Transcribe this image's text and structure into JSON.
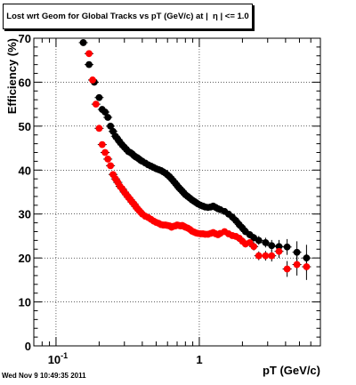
{
  "chart_data": {
    "type": "scatter",
    "title": "Lost wrt Geom for Global Tracks vs pT (GeV/c) at |  η | <= 1.0",
    "xlabel": "pT (GeV/c)",
    "ylabel": "Efficiency (%)",
    "x_scale": "log",
    "xlim": [
      0.07,
      7.0
    ],
    "ylim": [
      0,
      70
    ],
    "grid": true,
    "x_tick_labels": [
      {
        "value": 0.1,
        "base": "10",
        "exp": "-1"
      },
      {
        "value": 1,
        "base": "1",
        "exp": ""
      }
    ],
    "y_ticks": [
      0,
      10,
      20,
      30,
      40,
      50,
      60,
      70
    ],
    "series": [
      {
        "color": "#000000",
        "points": [
          [
            0.155,
            69.0
          ],
          [
            0.17,
            64.0
          ],
          [
            0.185,
            60.0
          ],
          [
            0.2,
            56.5
          ],
          [
            0.21,
            53.8
          ],
          [
            0.22,
            53.2
          ],
          [
            0.23,
            52.0
          ],
          [
            0.24,
            50.0
          ],
          [
            0.25,
            48.8
          ],
          [
            0.26,
            47.7
          ],
          [
            0.27,
            47.0
          ],
          [
            0.28,
            46.3
          ],
          [
            0.29,
            45.7
          ],
          [
            0.3,
            45.2
          ],
          [
            0.31,
            44.7
          ],
          [
            0.32,
            44.2
          ],
          [
            0.33,
            44.0
          ],
          [
            0.34,
            43.7
          ],
          [
            0.35,
            43.3
          ],
          [
            0.36,
            43.0
          ],
          [
            0.37,
            42.8
          ],
          [
            0.38,
            42.5
          ],
          [
            0.39,
            42.2
          ],
          [
            0.4,
            42.0
          ],
          [
            0.42,
            41.6
          ],
          [
            0.44,
            41.2
          ],
          [
            0.46,
            40.9
          ],
          [
            0.48,
            40.6
          ],
          [
            0.5,
            40.3
          ],
          [
            0.52,
            40.1
          ],
          [
            0.54,
            39.9
          ],
          [
            0.56,
            39.6
          ],
          [
            0.58,
            39.3
          ],
          [
            0.6,
            38.9
          ],
          [
            0.62,
            38.5
          ],
          [
            0.64,
            38.0
          ],
          [
            0.66,
            37.5
          ],
          [
            0.68,
            37.0
          ],
          [
            0.7,
            36.5
          ],
          [
            0.72,
            36.0
          ],
          [
            0.74,
            35.6
          ],
          [
            0.76,
            35.2
          ],
          [
            0.78,
            34.8
          ],
          [
            0.8,
            34.4
          ],
          [
            0.83,
            34.0
          ],
          [
            0.86,
            33.6
          ],
          [
            0.89,
            33.2
          ],
          [
            0.92,
            32.9
          ],
          [
            0.95,
            32.6
          ],
          [
            0.98,
            32.3
          ],
          [
            1.02,
            32.0
          ],
          [
            1.06,
            31.8
          ],
          [
            1.1,
            31.6
          ],
          [
            1.15,
            31.5
          ],
          [
            1.2,
            31.6
          ],
          [
            1.25,
            31.8
          ],
          [
            1.3,
            31.5
          ],
          [
            1.35,
            31.2
          ],
          [
            1.4,
            31.0
          ],
          [
            1.5,
            30.6
          ],
          [
            1.6,
            30.0
          ],
          [
            1.7,
            29.3
          ],
          [
            1.8,
            28.5
          ],
          [
            1.9,
            27.6
          ],
          [
            2.0,
            26.8
          ],
          [
            2.1,
            26.0
          ],
          [
            2.25,
            25.3
          ],
          [
            2.4,
            24.6
          ],
          [
            2.6,
            24.0
          ],
          [
            2.9,
            23.5
          ],
          [
            3.2,
            22.8
          ],
          [
            3.6,
            22.6
          ],
          [
            4.1,
            22.5
          ],
          [
            4.8,
            21.3
          ],
          [
            5.6,
            20.0
          ]
        ],
        "errors": [
          0.6,
          0.6,
          0.6,
          0.6,
          0.6,
          0.6,
          0.6,
          0.6,
          0.6,
          0.6,
          0.6,
          0.6,
          0.6,
          0.6,
          0.6,
          0.6,
          0.6,
          0.6,
          0.6,
          0.6,
          0.6,
          0.6,
          0.6,
          0.6,
          0.6,
          0.6,
          0.6,
          0.6,
          0.6,
          0.6,
          0.6,
          0.6,
          0.6,
          0.6,
          0.6,
          0.6,
          0.6,
          0.6,
          0.6,
          0.6,
          0.6,
          0.6,
          0.6,
          0.6,
          0.6,
          0.6,
          0.6,
          0.6,
          0.6,
          0.6,
          0.6,
          0.6,
          0.6,
          0.6,
          0.6,
          0.6,
          0.6,
          0.6,
          0.6,
          0.6,
          0.6,
          0.6,
          0.6,
          0.6,
          0.6,
          0.8,
          0.8,
          0.9,
          1.0,
          1.1,
          1.3,
          1.5,
          1.8,
          2.5,
          3.0
        ]
      },
      {
        "color": "#ff0000",
        "points": [
          [
            0.17,
            66.5
          ],
          [
            0.18,
            60.5
          ],
          [
            0.19,
            55.0
          ],
          [
            0.2,
            49.5
          ],
          [
            0.21,
            45.8
          ],
          [
            0.22,
            44.0
          ],
          [
            0.23,
            42.5
          ],
          [
            0.24,
            41.0
          ],
          [
            0.25,
            39.0
          ],
          [
            0.26,
            38.0
          ],
          [
            0.27,
            37.2
          ],
          [
            0.28,
            36.3
          ],
          [
            0.29,
            35.7
          ],
          [
            0.3,
            35.0
          ],
          [
            0.31,
            34.4
          ],
          [
            0.32,
            33.8
          ],
          [
            0.33,
            33.3
          ],
          [
            0.34,
            32.7
          ],
          [
            0.35,
            32.3
          ],
          [
            0.36,
            31.7
          ],
          [
            0.37,
            31.2
          ],
          [
            0.38,
            30.8
          ],
          [
            0.39,
            30.4
          ],
          [
            0.4,
            30.0
          ],
          [
            0.42,
            29.5
          ],
          [
            0.44,
            29.2
          ],
          [
            0.46,
            28.8
          ],
          [
            0.48,
            28.4
          ],
          [
            0.5,
            28.1
          ],
          [
            0.52,
            27.9
          ],
          [
            0.54,
            27.6
          ],
          [
            0.56,
            27.5
          ],
          [
            0.58,
            27.5
          ],
          [
            0.6,
            27.4
          ],
          [
            0.62,
            27.3
          ],
          [
            0.64,
            27.0
          ],
          [
            0.66,
            27.2
          ],
          [
            0.68,
            27.3
          ],
          [
            0.7,
            27.5
          ],
          [
            0.72,
            27.4
          ],
          [
            0.74,
            27.3
          ],
          [
            0.76,
            27.4
          ],
          [
            0.78,
            27.2
          ],
          [
            0.8,
            27.0
          ],
          [
            0.83,
            26.8
          ],
          [
            0.86,
            26.5
          ],
          [
            0.89,
            26.1
          ],
          [
            0.92,
            25.9
          ],
          [
            0.95,
            25.7
          ],
          [
            0.98,
            25.6
          ],
          [
            1.02,
            25.5
          ],
          [
            1.06,
            25.5
          ],
          [
            1.1,
            25.4
          ],
          [
            1.15,
            25.4
          ],
          [
            1.2,
            25.6
          ],
          [
            1.25,
            25.8
          ],
          [
            1.3,
            25.5
          ],
          [
            1.35,
            25.3
          ],
          [
            1.4,
            25.6
          ],
          [
            1.5,
            26.0
          ],
          [
            1.6,
            25.5
          ],
          [
            1.7,
            25.1
          ],
          [
            1.8,
            24.9
          ],
          [
            1.9,
            24.5
          ],
          [
            2.0,
            23.8
          ],
          [
            2.1,
            23.2
          ],
          [
            2.25,
            23.5
          ],
          [
            2.4,
            22.6
          ],
          [
            2.6,
            20.5
          ],
          [
            2.9,
            20.5
          ],
          [
            3.2,
            20.5
          ],
          [
            3.6,
            21.5
          ],
          [
            4.1,
            17.5
          ],
          [
            4.8,
            18.5
          ],
          [
            5.6,
            18.0
          ]
        ],
        "errors": [
          0.6,
          0.6,
          0.6,
          0.6,
          0.6,
          0.6,
          0.6,
          0.6,
          0.6,
          0.6,
          0.6,
          0.6,
          0.6,
          0.6,
          0.6,
          0.6,
          0.6,
          0.6,
          0.6,
          0.6,
          0.6,
          0.6,
          0.6,
          0.6,
          0.6,
          0.6,
          0.6,
          0.6,
          0.6,
          0.6,
          0.6,
          0.6,
          0.6,
          0.6,
          0.6,
          0.6,
          0.6,
          0.6,
          0.6,
          0.6,
          0.6,
          0.6,
          0.6,
          0.6,
          0.6,
          0.6,
          0.6,
          0.6,
          0.6,
          0.6,
          0.6,
          0.6,
          0.6,
          0.6,
          0.6,
          0.6,
          0.6,
          0.6,
          0.6,
          0.6,
          0.6,
          0.6,
          0.6,
          0.6,
          0.6,
          0.8,
          0.8,
          0.9,
          1.0,
          1.1,
          1.3,
          1.5,
          1.8,
          2.5,
          3.0
        ]
      }
    ]
  },
  "timestamp": "Wed Nov  9 10:49:35 2011"
}
